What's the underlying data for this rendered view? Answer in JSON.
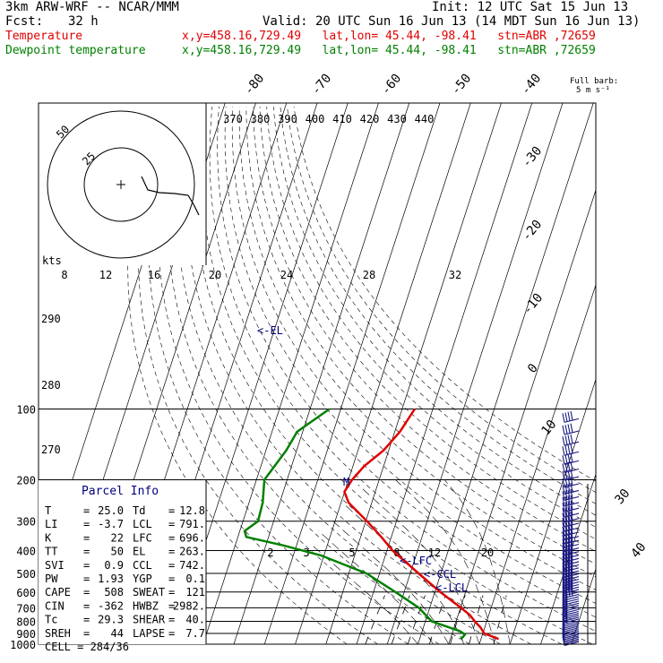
{
  "header": {
    "model": "3km ARW-WRF -- NCAR/MMM",
    "init": "Init: 12 UTC Sat 15 Jun 13",
    "fcst_label": "Fcst:",
    "fcst_value": "32 h",
    "valid": "Valid: 20 UTC Sun 16 Jun 13 (14 MDT Sun 16 Jun 13)",
    "temp_label": "Temperature",
    "dew_label": "Dewpoint temperature",
    "loc_info": "x,y=458.16,729.49   lat,lon= 45.44, -98.41   stn=ABR ,72659"
  },
  "colors": {
    "temperature": "#e00000",
    "dewpoint": "#008000",
    "parcel": "#000080"
  },
  "chart_data": {
    "type": "skew-t",
    "pressure_ticks": [
      100,
      200,
      300,
      400,
      500,
      600,
      700,
      800,
      900,
      1000
    ],
    "isotherm_labels": [
      "-80",
      "-70",
      "-60",
      "-50",
      "-40",
      "-30",
      "-20",
      "-10",
      "0",
      "10",
      "30",
      "40"
    ],
    "theta_labels": [
      "370",
      "380",
      "390",
      "400",
      "410",
      "420",
      "430",
      "440"
    ],
    "theta_axis_labels": [
      "290",
      "280",
      "270"
    ],
    "mixing_ratio_labels": [
      "2",
      "3",
      "5",
      "8",
      "12",
      "20"
    ],
    "wind_speed_labels": [
      "8",
      "12",
      "16",
      "20",
      "24",
      "28",
      "32"
    ],
    "hodograph_rings": [
      "25",
      "50"
    ],
    "hodograph_units": "kts",
    "barb_legend": "Full barb:\n5 m s⁻¹",
    "parcel_markers": [
      "<-EL",
      "<-LFC",
      "<-CCL",
      "<-LCL",
      "M"
    ],
    "temperature_profile": [
      {
        "p": 100,
        "t": -58.2
      },
      {
        "p": 125,
        "t": -57.5
      },
      {
        "p": 150,
        "t": -58.3
      },
      {
        "p": 175,
        "t": -60.8
      },
      {
        "p": 200,
        "t": -61.4
      },
      {
        "p": 225,
        "t": -61.0
      },
      {
        "p": 250,
        "t": -57.0
      },
      {
        "p": 300,
        "t": -46.5
      },
      {
        "p": 350,
        "t": -38.0
      },
      {
        "p": 400,
        "t": -31.0
      },
      {
        "p": 500,
        "t": -17.0
      },
      {
        "p": 600,
        "t": -5.4
      },
      {
        "p": 700,
        "t": 5.1
      },
      {
        "p": 750,
        "t": 9.7
      },
      {
        "p": 800,
        "t": 13.0
      },
      {
        "p": 850,
        "t": 16.4
      },
      {
        "p": 900,
        "t": 19.0
      },
      {
        "p": 950,
        "t": 25.0
      }
    ],
    "dewpoint_profile": [
      {
        "p": 100,
        "t": -86.0
      },
      {
        "p": 125,
        "t": -91.0
      },
      {
        "p": 150,
        "t": -90.0
      },
      {
        "p": 200,
        "t": -90.0
      },
      {
        "p": 250,
        "t": -85.0
      },
      {
        "p": 300,
        "t": -82.0
      },
      {
        "p": 330,
        "t": -84.0
      },
      {
        "p": 350,
        "t": -82.0
      },
      {
        "p": 380,
        "t": -68.0
      },
      {
        "p": 420,
        "t": -53.0
      },
      {
        "p": 500,
        "t": -34.0
      },
      {
        "p": 600,
        "t": -20.0
      },
      {
        "p": 700,
        "t": -8.6
      },
      {
        "p": 800,
        "t": -1.0
      },
      {
        "p": 880,
        "t": 10.5
      },
      {
        "p": 910,
        "t": 13.0
      },
      {
        "p": 950,
        "t": 12.8
      }
    ]
  },
  "parcel_info": {
    "title": "Parcel Info",
    "rows": [
      [
        "T",
        "25.0",
        "Td",
        "12.8"
      ],
      [
        "LI",
        "-3.7",
        "LCL",
        "791."
      ],
      [
        "K",
        "22",
        "LFC",
        "696."
      ],
      [
        "TT",
        "50",
        "EL",
        "263."
      ],
      [
        "SVI",
        "0.9",
        "CCL",
        "742."
      ],
      [
        "PW",
        "1.93",
        "YGP",
        "0.1"
      ],
      [
        "CAPE",
        "508",
        "SWEAT",
        "121"
      ],
      [
        "CIN",
        "-362",
        "HWBZ",
        "2982."
      ],
      [
        "Tc",
        "29.3",
        "SHEAR",
        "40."
      ],
      [
        "SREH",
        "44",
        "LAPSE",
        "7.7"
      ]
    ],
    "cell": "CELL = 284/36"
  }
}
